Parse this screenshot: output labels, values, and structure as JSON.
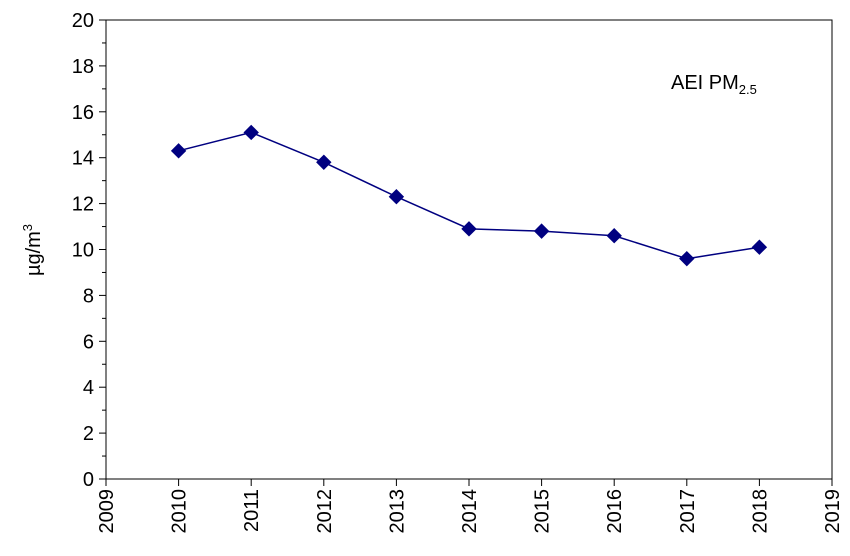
{
  "chart_data": {
    "type": "line",
    "title": "",
    "xlabel": "",
    "ylabel_main": "µg/m",
    "ylabel_sup": "3",
    "annotation_main": "AEI PM",
    "annotation_sub": "2.5",
    "xlim": [
      2009,
      2019
    ],
    "ylim": [
      0,
      20
    ],
    "x_ticks": [
      "2009",
      "2010",
      "2011",
      "2012",
      "2013",
      "2014",
      "2015",
      "2016",
      "2017",
      "2018",
      "2019"
    ],
    "y_ticks": [
      "0",
      "2",
      "4",
      "6",
      "8",
      "10",
      "12",
      "14",
      "16",
      "18",
      "20"
    ],
    "grid": false,
    "legend": "none",
    "series": [
      {
        "color": "#000080",
        "marker": "diamond",
        "x": [
          2010,
          2011,
          2012,
          2013,
          2014,
          2015,
          2016,
          2017,
          2018
        ],
        "y": [
          14.3,
          15.1,
          13.8,
          12.3,
          10.9,
          10.8,
          10.6,
          9.6,
          10.1
        ]
      }
    ]
  }
}
